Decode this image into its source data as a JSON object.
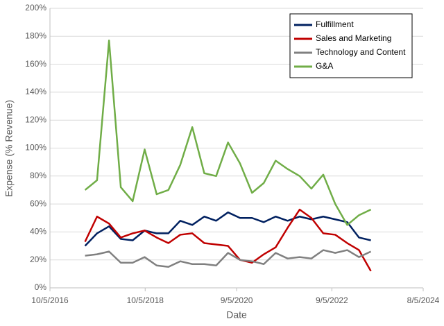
{
  "chart_data": {
    "type": "line",
    "x_label": "Date",
    "y_label": "Expense (% Revenue)",
    "x": [
      "2017-07-01",
      "2017-10-01",
      "2018-01-01",
      "2018-04-01",
      "2018-07-01",
      "2018-10-01",
      "2019-01-01",
      "2019-04-01",
      "2019-07-01",
      "2019-10-01",
      "2020-01-01",
      "2020-04-01",
      "2020-07-01",
      "2020-10-01",
      "2021-01-01",
      "2021-04-01",
      "2021-07-01",
      "2021-10-01",
      "2022-01-01",
      "2022-04-01",
      "2022-07-01",
      "2022-10-01",
      "2023-01-01",
      "2023-04-01",
      "2023-07-01"
    ],
    "series": [
      {
        "name": "Fulfillment",
        "color": "#002060",
        "values": [
          30,
          39,
          44,
          35,
          34,
          41,
          39,
          39,
          48,
          45,
          51,
          48,
          54,
          50,
          50,
          47,
          51,
          48,
          51,
          49,
          51,
          49,
          47,
          36,
          34
        ]
      },
      {
        "name": "Sales and Marketing",
        "color": "#c00000",
        "values": [
          33,
          51,
          46,
          36,
          39,
          41,
          36,
          32,
          38,
          39,
          32,
          31,
          30,
          20,
          18,
          24,
          29,
          43,
          56,
          50,
          39,
          38,
          32,
          27,
          12
        ]
      },
      {
        "name": "Technology and Content",
        "color": "#808080",
        "values": [
          23,
          24,
          26,
          18,
          18,
          22,
          16,
          15,
          19,
          17,
          17,
          16,
          25,
          20,
          19,
          17,
          25,
          21,
          22,
          21,
          27,
          25,
          27,
          22,
          26
        ]
      },
      {
        "name": "G&A",
        "color": "#70ad47",
        "values": [
          70,
          77,
          177,
          72,
          62,
          99,
          67,
          70,
          88,
          115,
          82,
          80,
          104,
          89,
          68,
          75,
          91,
          85,
          80,
          71,
          81,
          60,
          45,
          52,
          56
        ]
      }
    ],
    "xlim": [
      "2016-10-05",
      "2024-08-05"
    ],
    "xticks": [
      {
        "value": "2016-10-05",
        "label": "10/5/2016"
      },
      {
        "value": "2018-10-05",
        "label": "10/5/2018"
      },
      {
        "value": "2020-09-05",
        "label": "9/5/2020"
      },
      {
        "value": "2022-09-05",
        "label": "9/5/2022"
      },
      {
        "value": "2024-08-05",
        "label": "8/5/2024"
      }
    ],
    "ylim": [
      0,
      200
    ],
    "yticks": [
      {
        "value": 0,
        "label": "0%"
      },
      {
        "value": 20,
        "label": "20%"
      },
      {
        "value": 40,
        "label": "40%"
      },
      {
        "value": 60,
        "label": "60%"
      },
      {
        "value": 80,
        "label": "80%"
      },
      {
        "value": 100,
        "label": "100%"
      },
      {
        "value": 120,
        "label": "120%"
      },
      {
        "value": 140,
        "label": "140%"
      },
      {
        "value": 160,
        "label": "160%"
      },
      {
        "value": 180,
        "label": "180%"
      },
      {
        "value": 200,
        "label": "200%"
      }
    ],
    "grid": true,
    "legend": "top-right"
  }
}
